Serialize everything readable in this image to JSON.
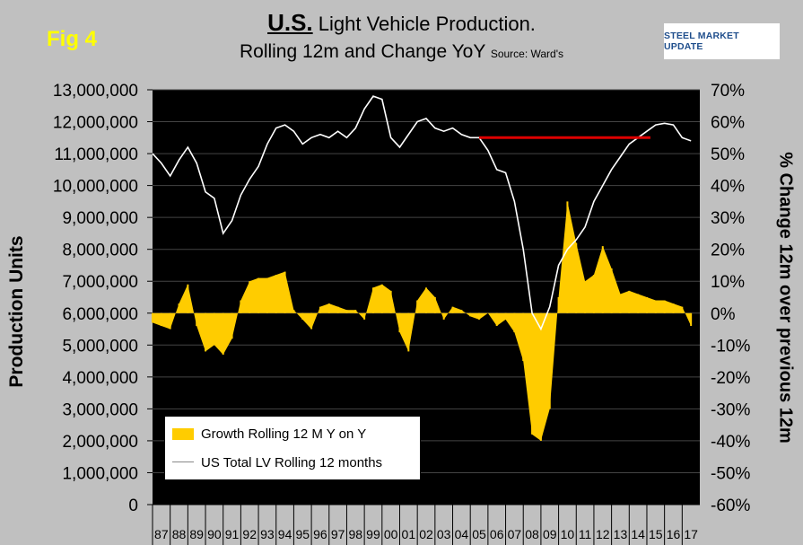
{
  "figure": {
    "fig_label": "Fig 4",
    "title_bold": "U.S.",
    "title_rest": " Light Vehicle Production.",
    "subtitle": "Rolling 12m and Change YoY",
    "source": "Source: Ward's",
    "logo_text": "STEEL MARKET UPDATE"
  },
  "chart_data": {
    "type": "bar",
    "ylabel_left": "Production Units",
    "ylabel_right": "% Change 12m over previous 12m",
    "ylim_left": [
      0,
      13000000
    ],
    "ylim_right": [
      -60,
      70
    ],
    "left_ticks": [
      "13,000,000",
      "12,000,000",
      "11,000,000",
      "10,000,000",
      "9,000,000",
      "8,000,000",
      "7,000,000",
      "6,000,000",
      "5,000,000",
      "4,000,000",
      "3,000,000",
      "2,000,000",
      "1,000,000",
      "0"
    ],
    "right_ticks": [
      "70%",
      "60%",
      "50%",
      "40%",
      "30%",
      "20%",
      "10%",
      "0%",
      "-10%",
      "-20%",
      "-30%",
      "-40%",
      "-50%",
      "-60%"
    ],
    "x_labels": [
      "87",
      "88",
      "89",
      "90",
      "91",
      "92",
      "93",
      "94",
      "95",
      "96",
      "97",
      "98",
      "99",
      "00",
      "01",
      "02",
      "03",
      "04",
      "05",
      "06",
      "07",
      "08",
      "09",
      "10",
      "11",
      "12",
      "13",
      "14",
      "15",
      "16",
      "17"
    ],
    "grid": true,
    "legend_position": "bottom-left",
    "series": [
      {
        "name": "Growth Rolling 12 M Y on Y",
        "kind": "bar",
        "axis": "right",
        "color": "#ffcc00",
        "x": [
          87.0,
          87.5,
          88.0,
          88.5,
          89.0,
          89.5,
          90.0,
          90.5,
          91.0,
          91.5,
          92.0,
          92.5,
          93.0,
          93.5,
          94.0,
          94.5,
          95.0,
          95.5,
          96.0,
          96.5,
          97.0,
          97.5,
          98.0,
          98.5,
          99.0,
          99.5,
          100.0,
          100.5,
          101.0,
          101.5,
          102.0,
          102.5,
          103.0,
          103.5,
          104.0,
          104.5,
          105.0,
          105.5,
          106.0,
          106.5,
          107.0,
          107.5,
          108.0,
          108.5,
          109.0,
          109.5,
          110.0,
          110.5,
          111.0,
          111.5,
          112.0,
          112.5,
          113.0,
          113.5,
          114.0,
          114.5,
          115.0,
          115.5,
          116.0,
          116.5,
          117.0,
          117.5
        ],
        "values": [
          -3,
          -4,
          -5,
          3,
          9,
          -4,
          -12,
          -10,
          -13,
          -8,
          4,
          10,
          11,
          11,
          12,
          13,
          1,
          -2,
          -5,
          2,
          3,
          2,
          1,
          1,
          -2,
          8,
          9,
          7,
          -6,
          -12,
          4,
          8,
          5,
          -2,
          2,
          1,
          -1,
          -2,
          0,
          -4,
          -2,
          -6,
          -15,
          -38,
          -40,
          -30,
          5,
          35,
          22,
          10,
          12,
          21,
          14,
          6,
          7,
          6,
          5,
          4,
          4,
          3,
          2,
          -4
        ],
        "note_x": "years since 1900"
      },
      {
        "name": "US Total LV Rolling 12 months",
        "kind": "line",
        "axis": "left",
        "color": "#ffffff",
        "x": [
          87.0,
          87.5,
          88.0,
          88.5,
          89.0,
          89.5,
          90.0,
          90.5,
          91.0,
          91.5,
          92.0,
          92.5,
          93.0,
          93.5,
          94.0,
          94.5,
          95.0,
          95.5,
          96.0,
          96.5,
          97.0,
          97.5,
          98.0,
          98.5,
          99.0,
          99.5,
          100.0,
          100.5,
          101.0,
          101.5,
          102.0,
          102.5,
          103.0,
          103.5,
          104.0,
          104.5,
          105.0,
          105.5,
          106.0,
          106.5,
          107.0,
          107.5,
          108.0,
          108.5,
          109.0,
          109.5,
          110.0,
          110.5,
          111.0,
          111.5,
          112.0,
          112.5,
          113.0,
          113.5,
          114.0,
          114.5,
          115.0,
          115.5,
          116.0,
          116.5,
          117.0,
          117.5
        ],
        "values": [
          11000000,
          10700000,
          10300000,
          10800000,
          11200000,
          10700000,
          9800000,
          9600000,
          8500000,
          8900000,
          9700000,
          10200000,
          10600000,
          11300000,
          11800000,
          11900000,
          11700000,
          11300000,
          11500000,
          11600000,
          11500000,
          11700000,
          11500000,
          11800000,
          12400000,
          12800000,
          12700000,
          11500000,
          11200000,
          11600000,
          12000000,
          12100000,
          11800000,
          11700000,
          11800000,
          11600000,
          11500000,
          11500000,
          11100000,
          10500000,
          10400000,
          9500000,
          8000000,
          6000000,
          5500000,
          6200000,
          7500000,
          8000000,
          8300000,
          8700000,
          9500000,
          10000000,
          10500000,
          10900000,
          11300000,
          11500000,
          11700000,
          11900000,
          11950000,
          11900000,
          11500000,
          11400000
        ],
        "note_x": "years since 1900"
      },
      {
        "name": "",
        "kind": "reference_line",
        "axis": "left",
        "color": "#dd0000",
        "x": [
          105.5,
          115.2
        ],
        "values": [
          11500000,
          11500000
        ]
      }
    ]
  }
}
